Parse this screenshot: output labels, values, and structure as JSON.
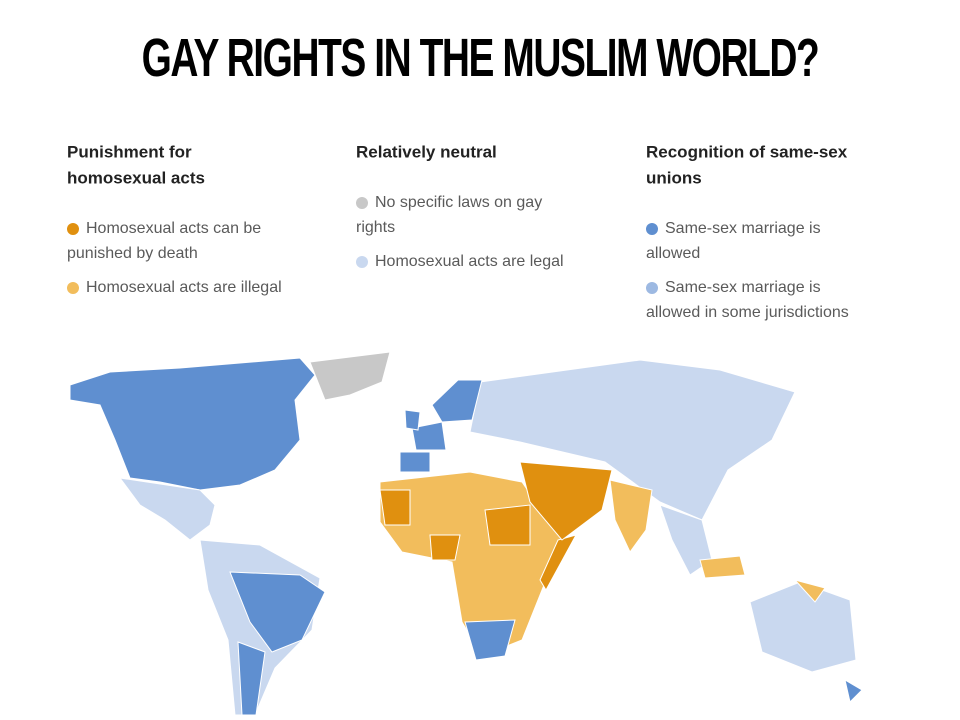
{
  "title": "GAY RIGHTS IN THE MUSLIM WORLD?",
  "legend": {
    "groups": [
      {
        "heading": [
          "Punishment for",
          "homosexual acts"
        ],
        "items": [
          {
            "label": [
              "Homosexual acts can be",
              "punished by death"
            ],
            "color": "#e0900f"
          },
          {
            "label": [
              "Homosexual acts are illegal"
            ],
            "color": "#f2bd5c"
          }
        ]
      },
      {
        "heading": [
          "Relatively neutral"
        ],
        "items": [
          {
            "label": [
              "No specific laws on gay",
              "rights"
            ],
            "color": "#c8c8c8"
          },
          {
            "label": [
              "Homosexual acts are legal"
            ],
            "color": "#c9d8ef"
          }
        ]
      },
      {
        "heading": [
          "Recognition of same-sex",
          "unions"
        ],
        "items": [
          {
            "label": [
              "Same-sex marriage is",
              "allowed"
            ],
            "color": "#5f8fd0"
          },
          {
            "label": [
              "Same-sex marriage is",
              "allowed in some jurisdictions"
            ],
            "color": "#9db9e2"
          }
        ]
      }
    ]
  }
}
